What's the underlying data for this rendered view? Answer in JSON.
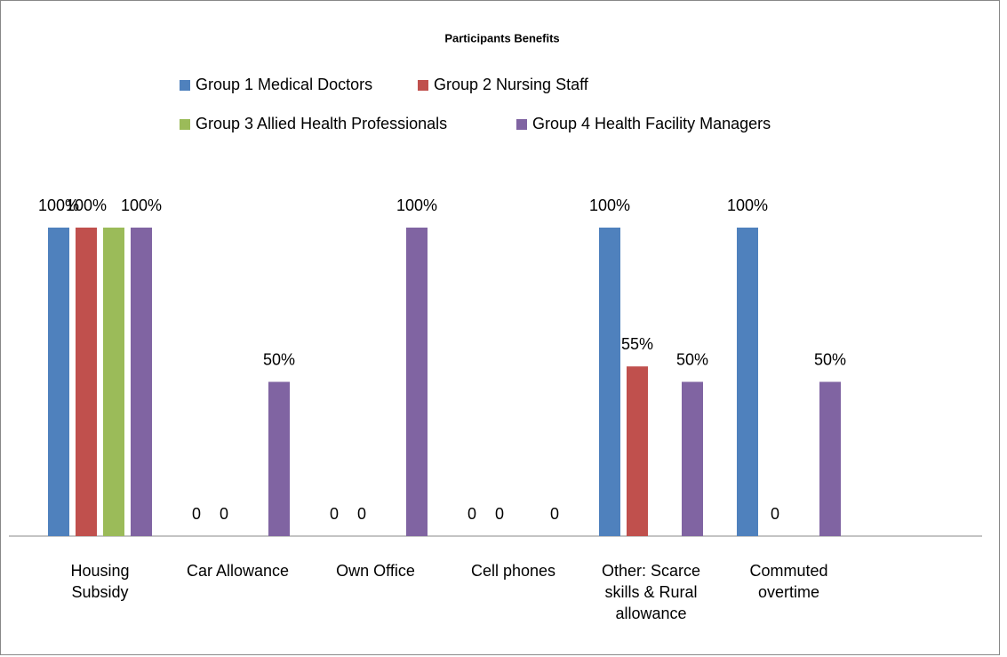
{
  "chart_data": {
    "type": "bar",
    "title": "Participants Benefits",
    "categories": [
      "Housing Subsidy",
      "Car Allowance",
      "Own Office",
      "Cell phones",
      "Other: Scarce skills & Rural allowance",
      "Commuted overtime",
      null
    ],
    "series": [
      {
        "name": "Group 1 Medical Doctors",
        "color": "#4f81bd",
        "values": [
          100,
          0,
          0,
          0,
          100,
          100,
          null
        ],
        "value_labels": [
          "100%",
          "0",
          "0",
          "0",
          "100%",
          "100%",
          null
        ]
      },
      {
        "name": "Group 2 Nursing Staff",
        "color": "#c0504d",
        "values": [
          100,
          0,
          0,
          0,
          55,
          0,
          null
        ],
        "value_labels": [
          "100%",
          "0",
          "0",
          "0",
          "55%",
          "0",
          null
        ]
      },
      {
        "name": "Group 3 Allied Health Professionals",
        "color": "#9bbb59",
        "values": [
          100,
          null,
          null,
          null,
          null,
          null,
          null
        ],
        "value_labels": [
          null,
          null,
          null,
          null,
          null,
          null,
          null
        ]
      },
      {
        "name": "Group 4 Health Facility Managers",
        "color": "#8064a2",
        "values": [
          100,
          50,
          100,
          0,
          50,
          50,
          null
        ],
        "value_labels": [
          "100%",
          "50%",
          "100%",
          "0",
          "50%",
          "50%",
          null
        ]
      }
    ]
  }
}
